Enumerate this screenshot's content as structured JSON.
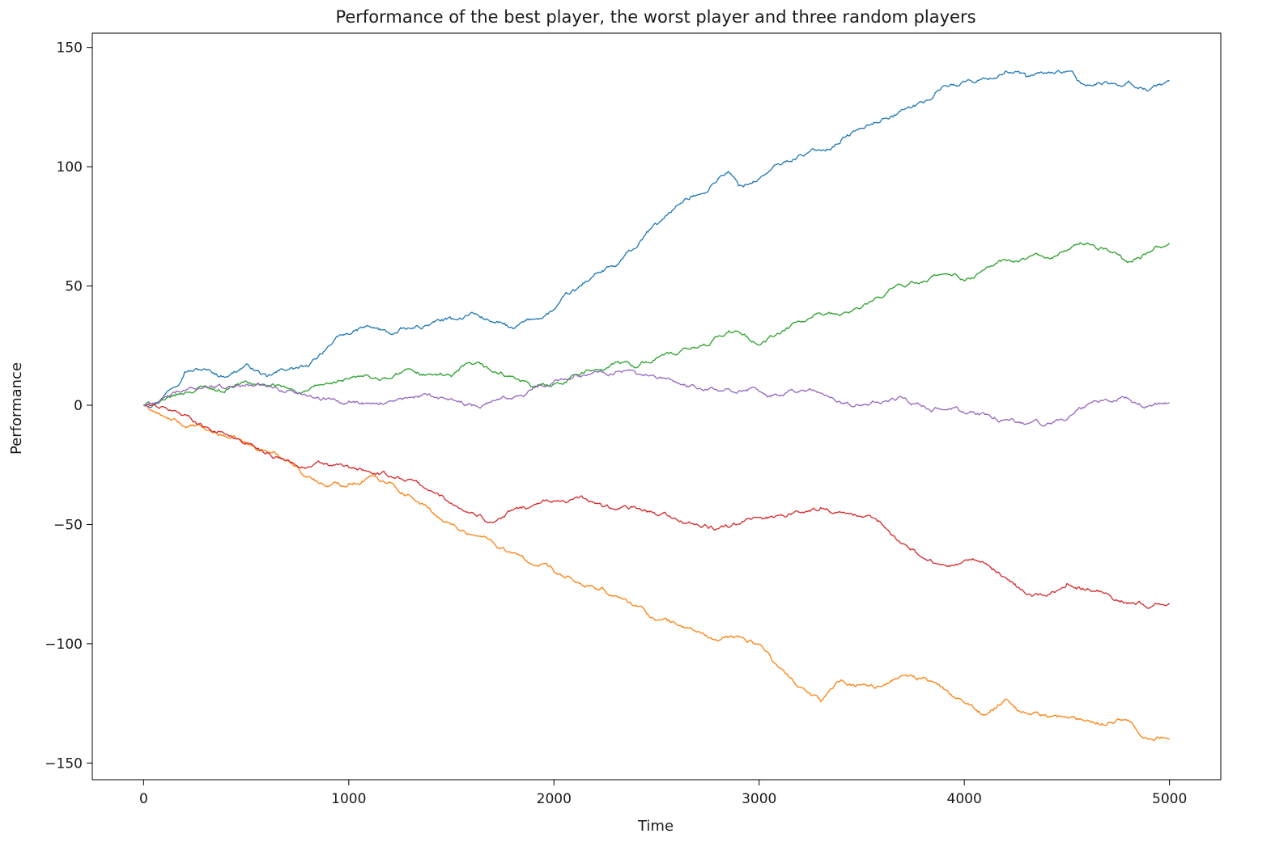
{
  "chart_data": {
    "type": "line",
    "title": "Performance of the best player, the worst player and three random players",
    "xlabel": "Time",
    "ylabel": "Performance",
    "xlim": [
      -250,
      5250
    ],
    "ylim": [
      -157,
      156
    ],
    "xticks": [
      0,
      1000,
      2000,
      3000,
      4000,
      5000
    ],
    "yticks": [
      -150,
      -100,
      -50,
      0,
      50,
      100,
      150
    ],
    "ytick_labels": [
      "−150",
      "−100",
      "−50",
      "0",
      "50",
      "100",
      "150"
    ],
    "grid": false,
    "legend": "none",
    "series": [
      {
        "color": "#1f77b4",
        "x": [
          0,
          100,
          200,
          300,
          400,
          500,
          600,
          700,
          800,
          900,
          1000,
          1100,
          1200,
          1300,
          1400,
          1500,
          1600,
          1700,
          1800,
          1900,
          2000,
          2100,
          2200,
          2300,
          2400,
          2500,
          2600,
          2700,
          2800,
          2850,
          2900,
          3000,
          3100,
          3200,
          3300,
          3400,
          3500,
          3600,
          3700,
          3800,
          3900,
          4000,
          4100,
          4200,
          4300,
          4400,
          4500,
          4550,
          4600,
          4700,
          4800,
          4900,
          5000
        ],
        "y": [
          0,
          4,
          14,
          15,
          12,
          17,
          12,
          15,
          16,
          25,
          30,
          33,
          30,
          32,
          34,
          36,
          39,
          35,
          32,
          36,
          40,
          48,
          55,
          58,
          66,
          76,
          84,
          88,
          95,
          98,
          92,
          95,
          101,
          105,
          107,
          111,
          116,
          120,
          124,
          127,
          134,
          136,
          137,
          140,
          138,
          139,
          140,
          136,
          134,
          135,
          136,
          132,
          136
        ]
      },
      {
        "color": "#ff7f0e",
        "x": [
          0,
          100,
          200,
          300,
          400,
          500,
          600,
          700,
          800,
          900,
          1000,
          1100,
          1200,
          1300,
          1400,
          1500,
          1600,
          1700,
          1800,
          1900,
          2000,
          2100,
          2200,
          2300,
          2400,
          2500,
          2600,
          2700,
          2800,
          2900,
          3000,
          3100,
          3200,
          3300,
          3400,
          3500,
          3600,
          3700,
          3800,
          3900,
          4000,
          4100,
          4200,
          4300,
          4400,
          4500,
          4600,
          4700,
          4800,
          4900,
          5000
        ],
        "y": [
          0,
          -5,
          -9,
          -10,
          -13,
          -16,
          -19,
          -23,
          -30,
          -34,
          -33,
          -30,
          -32,
          -38,
          -44,
          -50,
          -54,
          -57,
          -62,
          -67,
          -70,
          -74,
          -77,
          -80,
          -84,
          -90,
          -92,
          -95,
          -99,
          -97,
          -100,
          -110,
          -118,
          -124,
          -115,
          -117,
          -118,
          -113,
          -114,
          -119,
          -125,
          -130,
          -123,
          -129,
          -130,
          -131,
          -132,
          -133,
          -132,
          -140,
          -140
        ]
      },
      {
        "color": "#2ca02c",
        "x": [
          0,
          100,
          200,
          300,
          400,
          500,
          600,
          700,
          800,
          900,
          1000,
          1100,
          1200,
          1300,
          1400,
          1500,
          1600,
          1700,
          1800,
          1900,
          2000,
          2100,
          2200,
          2300,
          2400,
          2500,
          2600,
          2700,
          2800,
          2900,
          3000,
          3100,
          3200,
          3300,
          3400,
          3500,
          3600,
          3700,
          3800,
          3900,
          4000,
          4100,
          4200,
          4300,
          4400,
          4500,
          4600,
          4700,
          4800,
          4900,
          5000
        ],
        "y": [
          0,
          2,
          5,
          8,
          6,
          10,
          8,
          7,
          6,
          9,
          11,
          12,
          11,
          15,
          13,
          12,
          17,
          14,
          12,
          7,
          9,
          13,
          15,
          18,
          16,
          20,
          21,
          24,
          29,
          31,
          25,
          30,
          35,
          38,
          38,
          41,
          45,
          50,
          52,
          55,
          52,
          57,
          61,
          61,
          62,
          65,
          68,
          65,
          60,
          64,
          68
        ]
      },
      {
        "color": "#d62728",
        "x": [
          0,
          100,
          200,
          300,
          400,
          500,
          600,
          700,
          800,
          900,
          1000,
          1100,
          1200,
          1300,
          1400,
          1500,
          1600,
          1700,
          1800,
          1900,
          2000,
          2100,
          2200,
          2300,
          2400,
          2500,
          2600,
          2700,
          2800,
          2900,
          3000,
          3100,
          3200,
          3300,
          3400,
          3500,
          3600,
          3700,
          3800,
          3900,
          4000,
          4100,
          4200,
          4300,
          4400,
          4500,
          4600,
          4700,
          4800,
          4900,
          5000
        ],
        "y": [
          0,
          -1,
          -4,
          -9,
          -12,
          -16,
          -20,
          -23,
          -26,
          -25,
          -26,
          -28,
          -30,
          -31,
          -36,
          -41,
          -45,
          -49,
          -44,
          -42,
          -40,
          -39,
          -41,
          -44,
          -43,
          -46,
          -48,
          -50,
          -52,
          -50,
          -47,
          -46,
          -45,
          -43,
          -45,
          -47,
          -50,
          -58,
          -64,
          -67,
          -65,
          -66,
          -72,
          -79,
          -80,
          -75,
          -77,
          -79,
          -83,
          -85,
          -83
        ]
      },
      {
        "color": "#9467bd",
        "x": [
          0,
          100,
          200,
          300,
          400,
          500,
          600,
          700,
          800,
          900,
          1000,
          1100,
          1200,
          1300,
          1400,
          1500,
          1600,
          1700,
          1800,
          1900,
          2000,
          2100,
          2200,
          2300,
          2400,
          2500,
          2600,
          2700,
          2800,
          2900,
          3000,
          3100,
          3200,
          3300,
          3400,
          3500,
          3600,
          3700,
          3800,
          3900,
          4000,
          4100,
          4200,
          4300,
          4400,
          4500,
          4600,
          4700,
          4800,
          4900,
          5000
        ],
        "y": [
          0,
          3,
          6,
          8,
          7,
          9,
          8,
          6,
          4,
          3,
          2,
          1,
          2,
          3,
          4,
          3,
          0,
          2,
          3,
          8,
          10,
          13,
          14,
          14,
          13,
          11,
          9,
          7,
          6,
          6,
          6,
          4,
          6,
          5,
          1,
          0,
          1,
          3,
          0,
          -2,
          -3,
          -4,
          -6,
          -8,
          -8,
          -6,
          0,
          2,
          3,
          0,
          1
        ]
      }
    ]
  }
}
